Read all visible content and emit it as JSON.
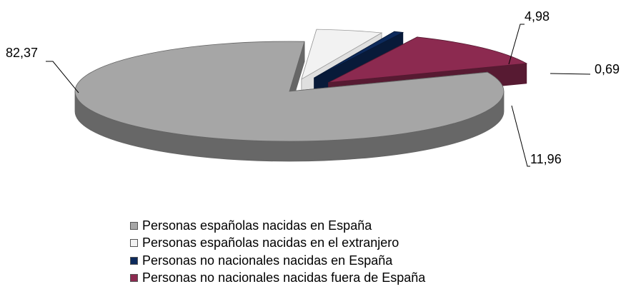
{
  "chart_data": {
    "type": "pie",
    "categories": [
      "Personas españolas nacidas en España",
      "Personas españolas nacidas en el extranjero",
      "Personas no nacionales nacidas en España",
      "Personas no nacionales nacidas fuera de España"
    ],
    "values": [
      82.37,
      4.98,
      0.69,
      11.96
    ],
    "value_labels": [
      "82,37",
      "4,98",
      "0,69",
      "11,96"
    ],
    "colors": [
      "#a6a6a6",
      "#f2f2f2",
      "#0d2a5c",
      "#8c2a50"
    ],
    "exploded": true,
    "three_d": true,
    "legend_position": "bottom"
  }
}
